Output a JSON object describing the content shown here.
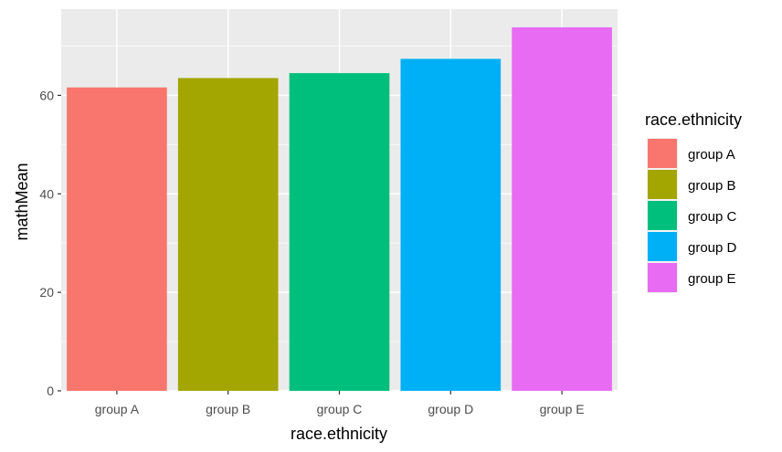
{
  "chart_data": {
    "type": "bar",
    "categories": [
      "group A",
      "group B",
      "group C",
      "group D",
      "group E"
    ],
    "values": [
      61.6,
      63.5,
      64.5,
      67.4,
      73.8
    ],
    "colors": [
      "#F8766D",
      "#A3A500",
      "#00BF7D",
      "#00B0F6",
      "#E76BF3"
    ],
    "xlabel": "race.ethnicity",
    "ylabel": "mathMean",
    "ylim": [
      0,
      77.5
    ],
    "yticks": [
      0,
      20,
      40,
      60
    ],
    "grid": true,
    "panel_background": "#EBEBEB",
    "legend": {
      "title": "race.ethnicity",
      "placement": "right",
      "entries": [
        "group A",
        "group B",
        "group C",
        "group D",
        "group E"
      ]
    }
  }
}
